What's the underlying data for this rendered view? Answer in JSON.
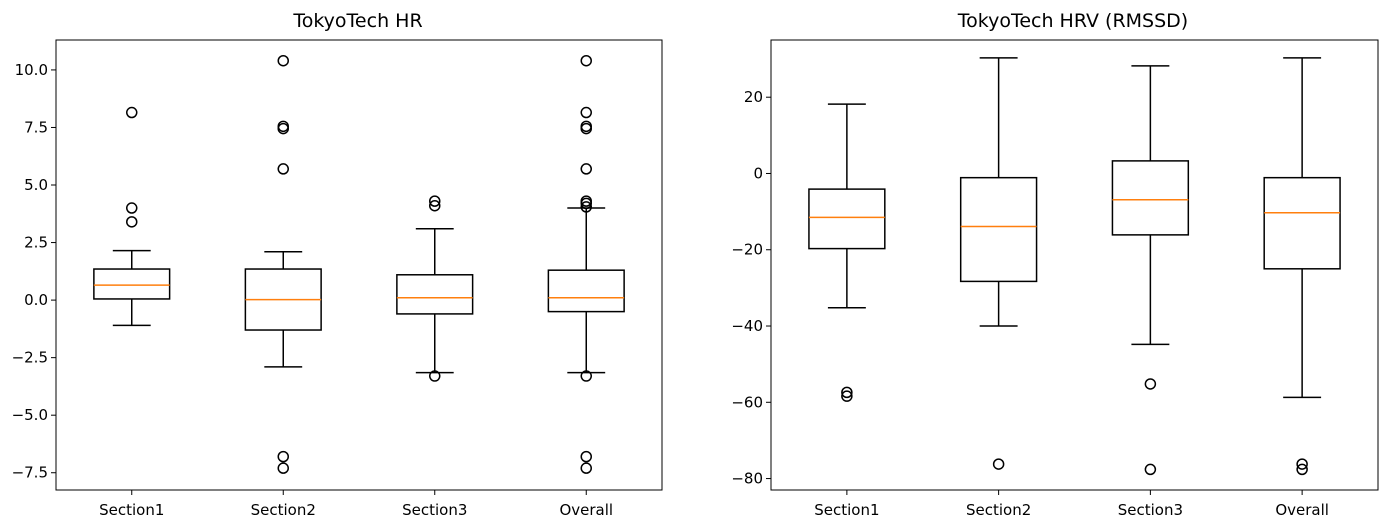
{
  "chart_data": [
    {
      "type": "box",
      "title": "TokyoTech HR",
      "categories": [
        "Section1",
        "Section2",
        "Section3",
        "Overall"
      ],
      "ylim": [
        -8.25,
        11.3
      ],
      "yticks": [
        -7.5,
        -5.0,
        -2.5,
        0.0,
        2.5,
        5.0,
        7.5,
        10.0
      ],
      "ytick_labels": [
        "−7.5",
        "−5.0",
        "−2.5",
        "0.0",
        "2.5",
        "5.0",
        "7.5",
        "10.0"
      ],
      "boxes": [
        {
          "whisker_low": -1.1,
          "q1": 0.05,
          "median": 0.65,
          "q3": 1.35,
          "whisker_high": 2.15,
          "outliers": [
            8.15,
            4.0,
            3.4
          ]
        },
        {
          "whisker_low": -2.9,
          "q1": -1.3,
          "median": 0.02,
          "q3": 1.35,
          "whisker_high": 2.1,
          "outliers": [
            10.4,
            7.55,
            7.45,
            5.7,
            -6.8,
            -7.3
          ]
        },
        {
          "whisker_low": -3.15,
          "q1": -0.6,
          "median": 0.1,
          "q3": 1.1,
          "whisker_high": 3.1,
          "outliers": [
            4.3,
            4.1,
            -3.3
          ]
        },
        {
          "whisker_low": -3.15,
          "q1": -0.5,
          "median": 0.1,
          "q3": 1.3,
          "whisker_high": 4.0,
          "outliers": [
            10.4,
            8.15,
            7.55,
            7.45,
            5.7,
            4.3,
            4.2,
            4.05,
            -3.3,
            -6.8,
            -7.3
          ]
        }
      ],
      "grid": false,
      "colors": {
        "box": "#000000",
        "median": "#ff7f0e"
      }
    },
    {
      "type": "box",
      "title": "TokyoTech HRV (RMSSD)",
      "categories": [
        "Section1",
        "Section2",
        "Section3",
        "Overall"
      ],
      "ylim": [
        -83,
        35
      ],
      "yticks": [
        -80,
        -60,
        -40,
        -20,
        0,
        20
      ],
      "ytick_labels": [
        "−80",
        "−60",
        "−40",
        "−20",
        "0",
        "20"
      ],
      "boxes": [
        {
          "whisker_low": -35.2,
          "q1": -19.7,
          "median": -11.5,
          "q3": -4.1,
          "whisker_high": 18.2,
          "outliers": [
            -57.4,
            -58.4
          ]
        },
        {
          "whisker_low": -40.0,
          "q1": -28.3,
          "median": -13.9,
          "q3": -1.1,
          "whisker_high": 30.3,
          "outliers": [
            -76.2
          ]
        },
        {
          "whisker_low": -44.8,
          "q1": -16.1,
          "median": -6.9,
          "q3": 3.3,
          "whisker_high": 28.2,
          "outliers": [
            -55.2,
            -77.6
          ]
        },
        {
          "whisker_low": -58.7,
          "q1": -25.0,
          "median": -10.3,
          "q3": -1.1,
          "whisker_high": 30.3,
          "outliers": [
            -76.2,
            -77.6
          ]
        }
      ],
      "grid": false,
      "colors": {
        "box": "#000000",
        "median": "#ff7f0e"
      }
    }
  ]
}
